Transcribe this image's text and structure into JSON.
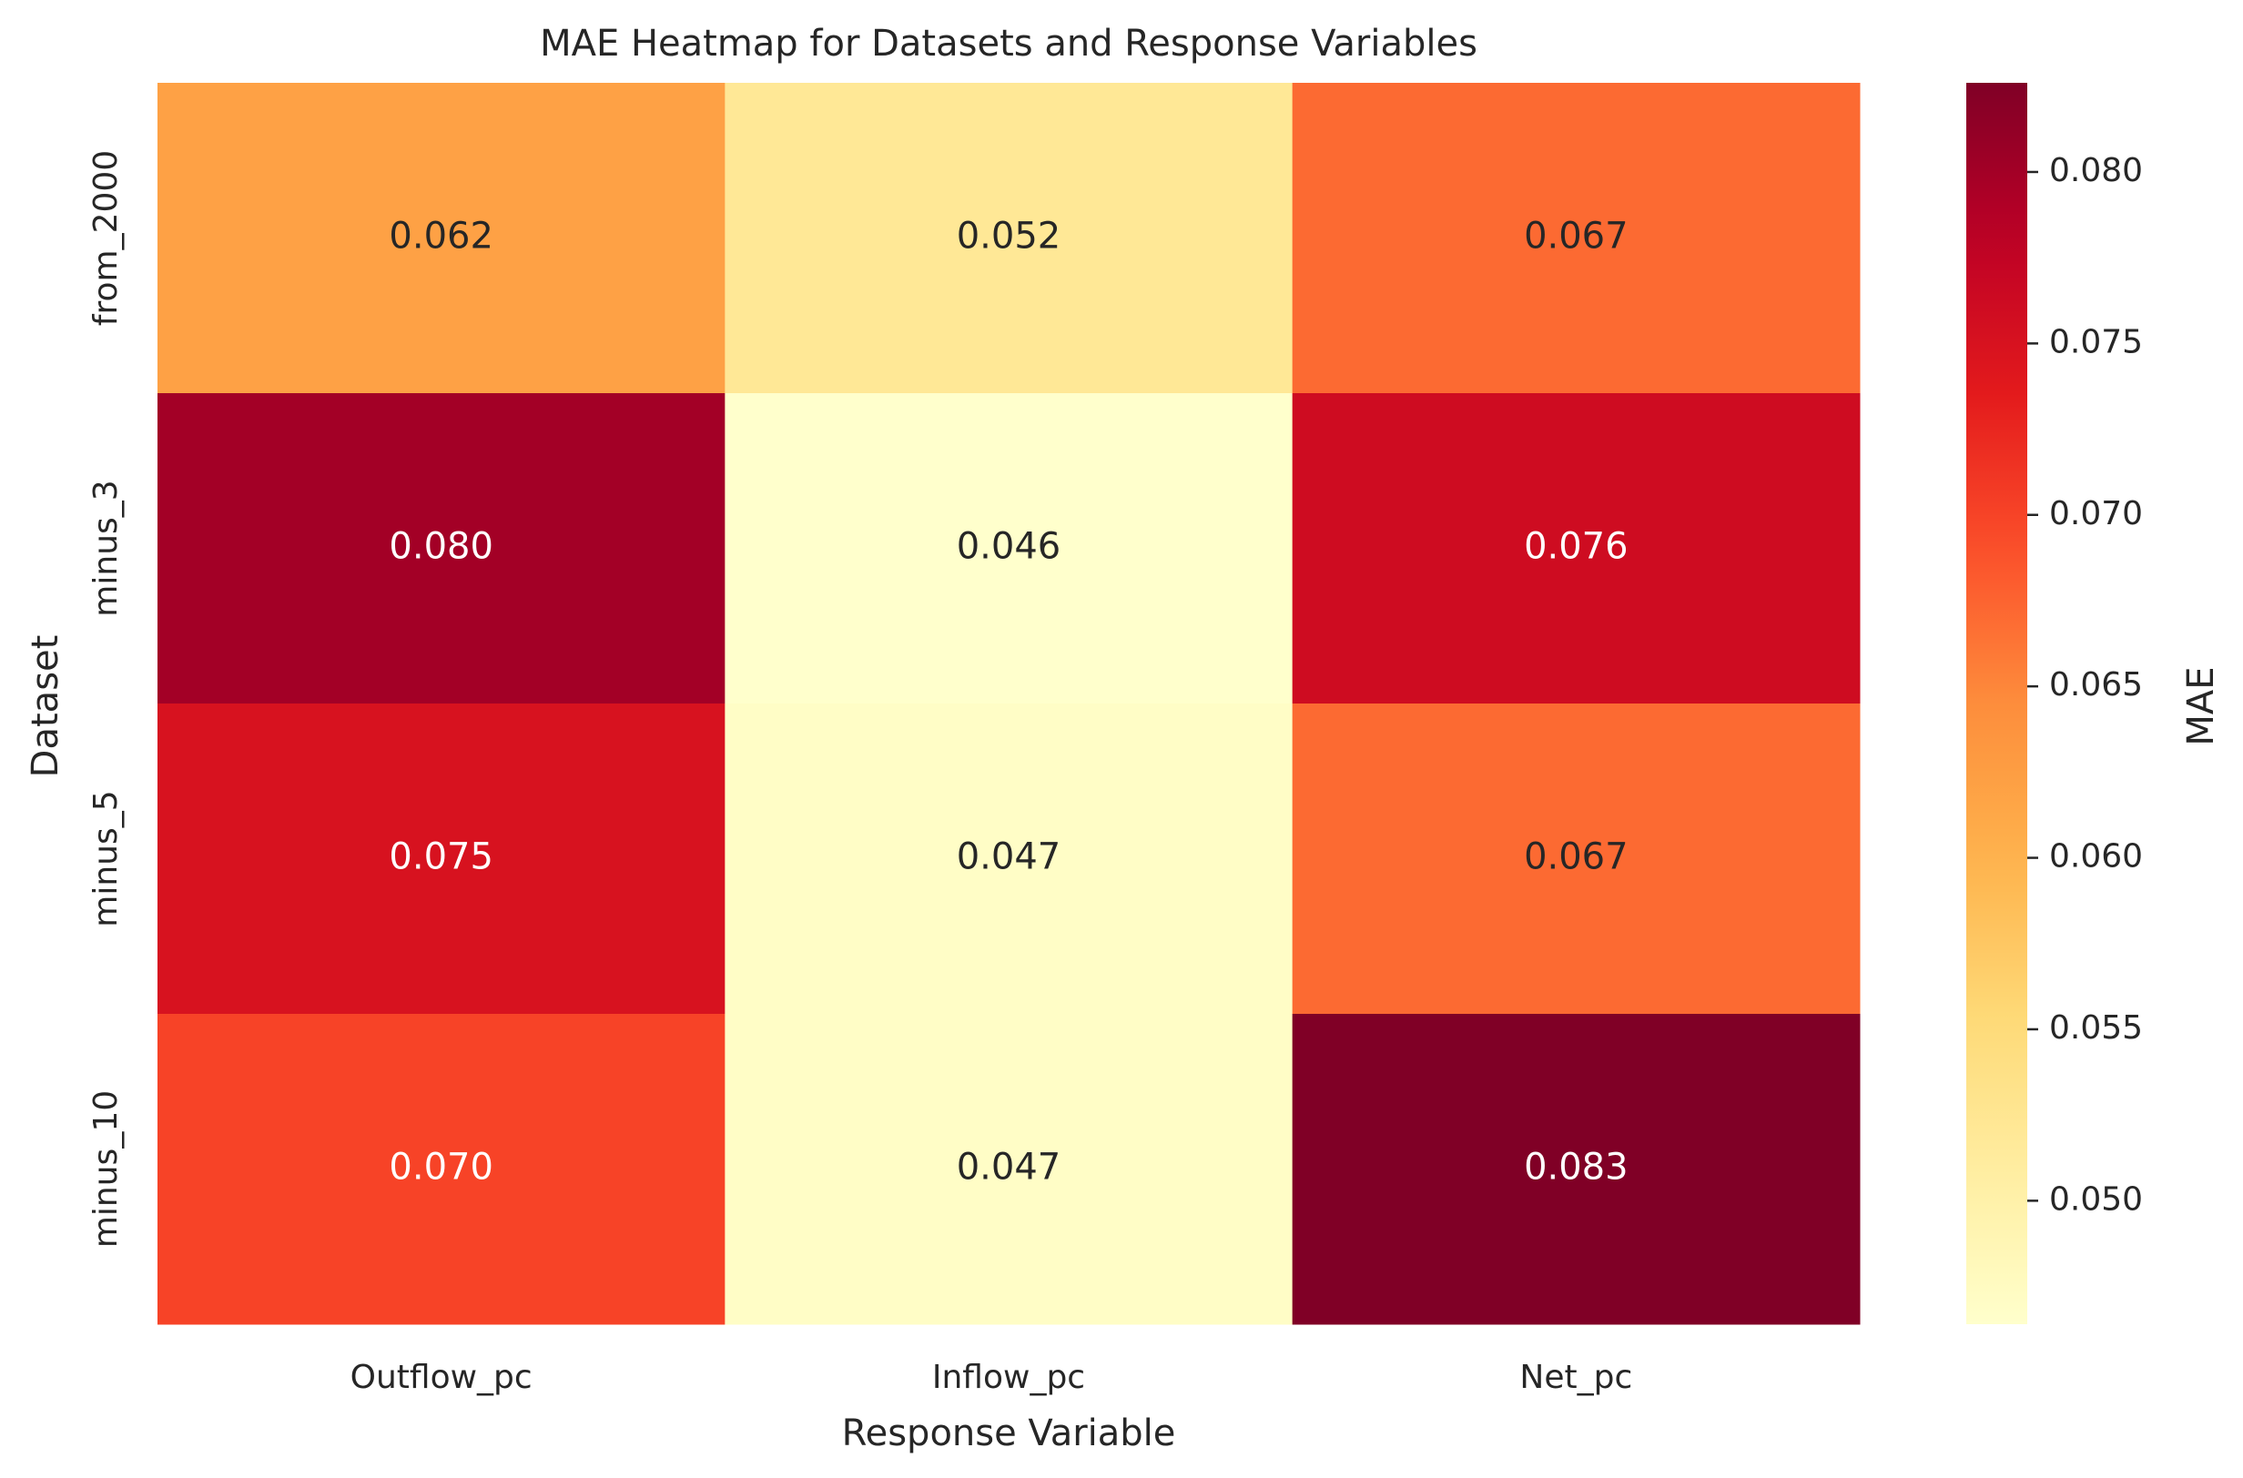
{
  "chart_data": {
    "type": "heatmap",
    "title": "MAE Heatmap for Datasets and Response Variables",
    "xlabel": "Response Variable",
    "ylabel": "Dataset",
    "x_categories": [
      "Outflow_pc",
      "Inflow_pc",
      "Net_pc"
    ],
    "y_categories": [
      "from_2000",
      "minus_3",
      "minus_5",
      "minus_10"
    ],
    "values": [
      [
        0.062,
        0.052,
        0.067
      ],
      [
        0.08,
        0.046,
        0.076
      ],
      [
        0.075,
        0.047,
        0.067
      ],
      [
        0.07,
        0.047,
        0.083
      ]
    ],
    "value_labels": [
      [
        "0.062",
        "0.052",
        "0.067"
      ],
      [
        "0.080",
        "0.046",
        "0.076"
      ],
      [
        "0.075",
        "0.047",
        "0.067"
      ],
      [
        "0.070",
        "0.047",
        "0.083"
      ]
    ],
    "colormap": "YlOrRd",
    "colorbar": {
      "label": "MAE",
      "vmin": 0.0464,
      "vmax": 0.0826,
      "ticks": [
        0.05,
        0.055,
        0.06,
        0.065,
        0.07,
        0.075,
        0.08
      ],
      "tick_labels": [
        "0.050",
        "0.055",
        "0.060",
        "0.065",
        "0.070",
        "0.075",
        "0.080"
      ]
    },
    "grid": false
  }
}
